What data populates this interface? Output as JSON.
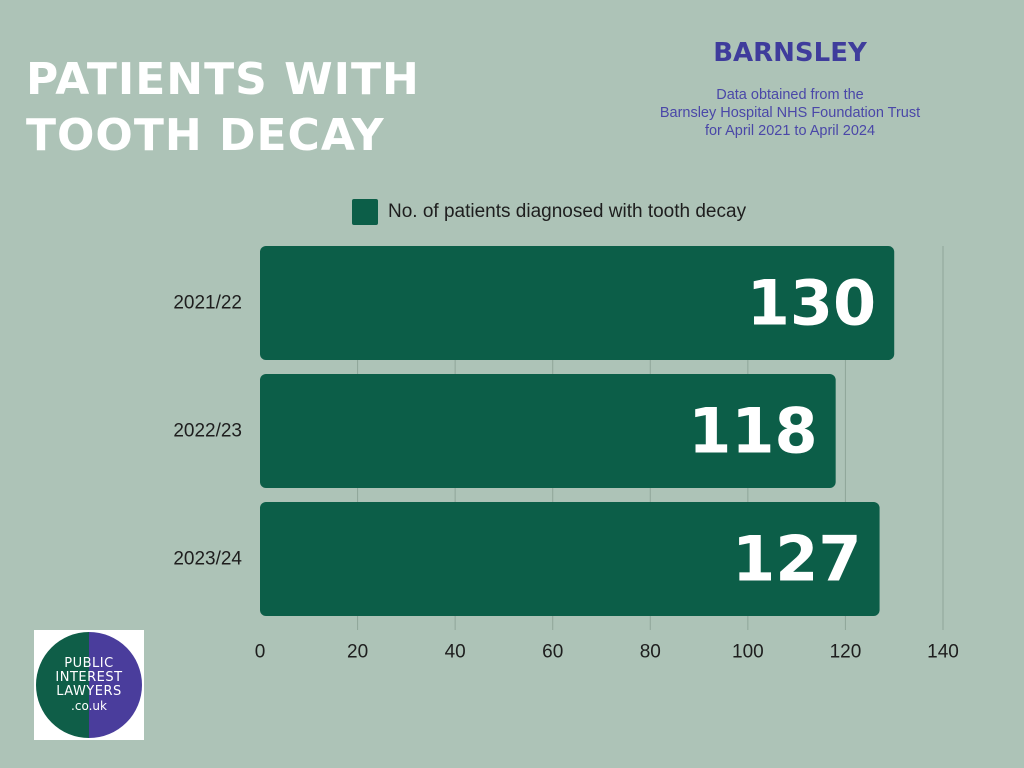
{
  "header": {
    "title_lines": [
      "PATIENTS WITH",
      "TOOTH DECAY"
    ],
    "region": "BARNSLEY",
    "source_lines": [
      "Data obtained from the",
      "Barnsley Hospital NHS Foundation Trust",
      "for April 2021 to April 2024"
    ]
  },
  "legend": {
    "label": "No. of patients diagnosed with tooth decay"
  },
  "colors": {
    "bar": "#0c5e48",
    "background": "#adc3b7",
    "accent": "#3f3c9c",
    "grid": "#8fa699"
  },
  "logo": {
    "lines": [
      "PUBLIC",
      "INTEREST",
      "LAWYERS"
    ],
    "domain": ".co.uk"
  },
  "chart_data": {
    "type": "bar",
    "orientation": "horizontal",
    "categories": [
      "2021/22",
      "2022/23",
      "2023/24"
    ],
    "series": [
      {
        "name": "No. of patients diagnosed with tooth decay",
        "values": [
          130,
          118,
          127
        ]
      }
    ],
    "xlim": [
      0,
      140
    ],
    "xticks": [
      0,
      20,
      40,
      60,
      80,
      100,
      120,
      140
    ],
    "grid": true,
    "legend_position": "top",
    "data_labels": true
  }
}
